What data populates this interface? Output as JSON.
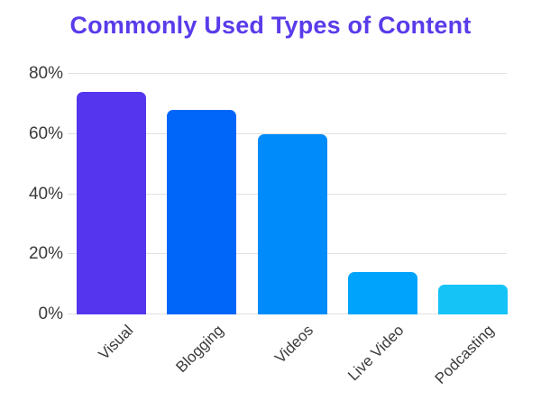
{
  "chart_data": {
    "type": "bar",
    "title": "Commonly Used Types of Content",
    "categories": [
      "Visual",
      "Blogging",
      "Videos",
      "Live Video",
      "Podcasting"
    ],
    "values": [
      74,
      68,
      60,
      14,
      10
    ],
    "bar_colors": [
      "#5536EE",
      "#0066FA",
      "#008BFA",
      "#00A3FC",
      "#16C3F6"
    ],
    "xlabel": "",
    "ylabel": "",
    "ylim": [
      0,
      80
    ],
    "yticks": [
      0,
      20,
      40,
      60,
      80
    ],
    "ytick_labels": [
      "0%",
      "20%",
      "40%",
      "60%",
      "80%"
    ],
    "grid": true,
    "legend": false
  },
  "colors": {
    "title_text": "#5A3BEA",
    "axis_text": "#3B3B3B",
    "gridline": "#E0E0E0",
    "background": "#FFFFFF"
  }
}
